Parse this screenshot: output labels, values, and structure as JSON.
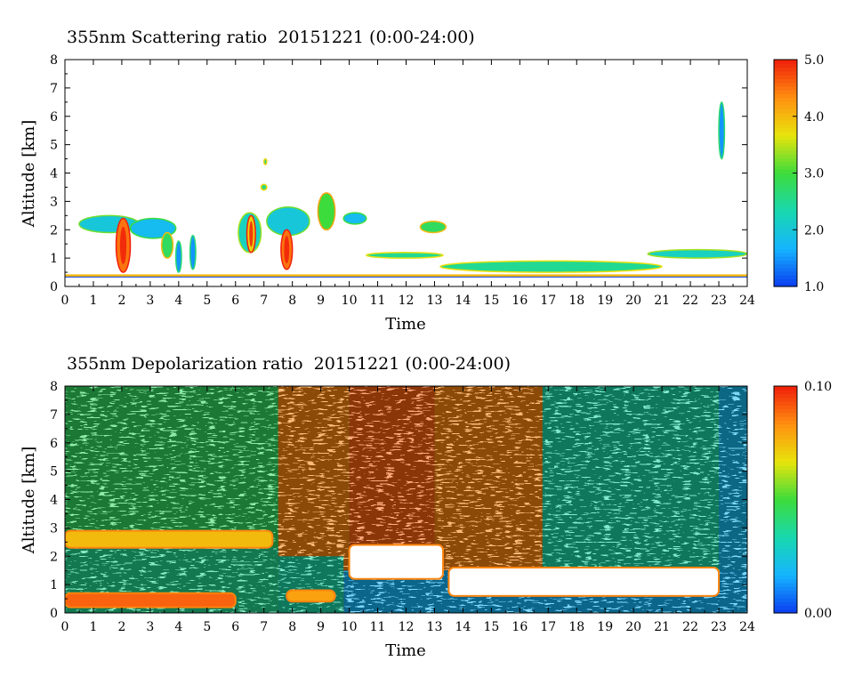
{
  "chart_data": [
    {
      "type": "heatmap",
      "title": "355nm Scattering ratio  20151221 (0:00-24:00)",
      "xlabel": "Time",
      "ylabel": "Altitude [km]",
      "xlim": [
        0,
        24
      ],
      "ylim": [
        0,
        8
      ],
      "x_ticks": [
        0,
        1,
        2,
        3,
        4,
        5,
        6,
        7,
        8,
        9,
        10,
        11,
        12,
        13,
        14,
        15,
        16,
        17,
        18,
        19,
        20,
        21,
        22,
        23,
        24
      ],
      "y_ticks": [
        0,
        1,
        2,
        3,
        4,
        5,
        6,
        7,
        8
      ],
      "colorbar": {
        "range": [
          1.0,
          5.0
        ],
        "tick_values": [
          1.0,
          2.0,
          3.0,
          4.0,
          5.0
        ],
        "tick_labels": [
          "1.0",
          "2.0",
          "3.0",
          "4.0",
          "5.0"
        ],
        "colors": [
          "#0a3cf0",
          "#16b4ff",
          "#18d8b0",
          "#3cdc3c",
          "#e8e40c",
          "#ff9010",
          "#f01e0a"
        ]
      },
      "surface_layer_km": 0.38,
      "features": [
        {
          "kind": "cloud",
          "t": [
            0.5,
            2.6
          ],
          "alt": [
            1.9,
            2.5
          ],
          "level": 2.0
        },
        {
          "kind": "cloud",
          "t": [
            1.8,
            2.3
          ],
          "alt": [
            0.5,
            2.4
          ],
          "level": 4.5
        },
        {
          "kind": "cloud",
          "t": [
            2.3,
            3.9
          ],
          "alt": [
            1.7,
            2.4
          ],
          "level": 1.8
        },
        {
          "kind": "cloud",
          "t": [
            3.4,
            3.8
          ],
          "alt": [
            1.0,
            1.9
          ],
          "level": 2.8
        },
        {
          "kind": "cloud",
          "t": [
            3.9,
            4.1
          ],
          "alt": [
            0.5,
            1.6
          ],
          "level": 1.5
        },
        {
          "kind": "cloud",
          "t": [
            4.4,
            4.6
          ],
          "alt": [
            0.6,
            1.8
          ],
          "level": 1.5
        },
        {
          "kind": "cloud",
          "t": [
            6.1,
            6.9
          ],
          "alt": [
            1.2,
            2.6
          ],
          "level": 2.2
        },
        {
          "kind": "cloud",
          "t": [
            6.4,
            6.7
          ],
          "alt": [
            1.2,
            2.5
          ],
          "level": 3.8
        },
        {
          "kind": "cloud",
          "t": [
            7.0,
            7.1
          ],
          "alt": [
            4.3,
            4.5
          ],
          "level": 2.6
        },
        {
          "kind": "cloud",
          "t": [
            6.9,
            7.1
          ],
          "alt": [
            3.4,
            3.6
          ],
          "level": 2.6
        },
        {
          "kind": "cloud",
          "t": [
            7.1,
            8.6
          ],
          "alt": [
            1.8,
            2.8
          ],
          "level": 2.0
        },
        {
          "kind": "cloud",
          "t": [
            7.6,
            8.0
          ],
          "alt": [
            0.6,
            2.0
          ],
          "level": 4.5
        },
        {
          "kind": "cloud",
          "t": [
            8.9,
            9.5
          ],
          "alt": [
            2.0,
            3.3
          ],
          "level": 3.0
        },
        {
          "kind": "cloud",
          "t": [
            9.8,
            10.6
          ],
          "alt": [
            2.2,
            2.6
          ],
          "level": 1.8
        },
        {
          "kind": "cloud",
          "t": [
            10.6,
            13.3
          ],
          "alt": [
            1.0,
            1.2
          ],
          "level": 2.5
        },
        {
          "kind": "cloud",
          "t": [
            12.5,
            13.4
          ],
          "alt": [
            1.9,
            2.3
          ],
          "level": 2.8
        },
        {
          "kind": "cloud",
          "t": [
            13.2,
            21.0
          ],
          "alt": [
            0.5,
            0.9
          ],
          "level": 2.5
        },
        {
          "kind": "cloud",
          "t": [
            20.5,
            24.0
          ],
          "alt": [
            1.0,
            1.3
          ],
          "level": 2.2
        },
        {
          "kind": "cloud",
          "t": [
            23.0,
            23.2
          ],
          "alt": [
            4.5,
            6.5
          ],
          "level": 1.5
        }
      ]
    },
    {
      "type": "heatmap",
      "title": "355nm Depolarization ratio  20151221 (0:00-24:00)",
      "xlabel": "Time",
      "ylabel": "Altitude [km]",
      "xlim": [
        0,
        24
      ],
      "ylim": [
        0,
        8
      ],
      "x_ticks": [
        0,
        1,
        2,
        3,
        4,
        5,
        6,
        7,
        8,
        9,
        10,
        11,
        12,
        13,
        14,
        15,
        16,
        17,
        18,
        19,
        20,
        21,
        22,
        23,
        24
      ],
      "y_ticks": [
        0,
        1,
        2,
        3,
        4,
        5,
        6,
        7,
        8
      ],
      "colorbar": {
        "range": [
          0.0,
          0.1
        ],
        "tick_values": [
          0.0,
          0.1
        ],
        "tick_labels": [
          "0.00",
          "0.10"
        ],
        "colors": [
          "#0a3cf0",
          "#16b4ff",
          "#18d8b0",
          "#3cdc3c",
          "#e8e40c",
          "#ff9010",
          "#f01e0a"
        ]
      },
      "upper_noise_level": [
        {
          "t": [
            0,
            7.5
          ],
          "level": 0.045
        },
        {
          "t": [
            7.5,
            10.0
          ],
          "level": 0.085
        },
        {
          "t": [
            10.0,
            13.0
          ],
          "level": 0.09
        },
        {
          "t": [
            13.0,
            16.8
          ],
          "level": 0.085
        },
        {
          "t": [
            16.8,
            23.0
          ],
          "level": 0.035
        },
        {
          "t": [
            23.0,
            24.0
          ],
          "level": 0.02
        }
      ],
      "boundary_layer": [
        {
          "t": [
            0,
            7.5
          ],
          "top_km": 2.3,
          "level": 0.038
        },
        {
          "t": [
            7.5,
            9.8
          ],
          "top_km": 2.0,
          "level": 0.035
        },
        {
          "t": [
            9.8,
            24.0
          ],
          "top_km": 1.5,
          "level": 0.018
        }
      ],
      "features": [
        {
          "kind": "layer",
          "t": [
            0.0,
            6.0
          ],
          "alt": [
            0.2,
            0.7
          ],
          "level": 0.09
        },
        {
          "kind": "layer",
          "t": [
            0.0,
            7.3
          ],
          "alt": [
            2.3,
            2.9
          ],
          "level": 0.075
        },
        {
          "kind": "layer",
          "t": [
            7.8,
            9.5
          ],
          "alt": [
            0.4,
            0.8
          ],
          "level": 0.08
        },
        {
          "kind": "layer",
          "t": [
            10.0,
            13.3
          ],
          "alt": [
            1.2,
            2.4
          ],
          "level": 0.1
        },
        {
          "kind": "layer",
          "t": [
            13.5,
            23.0
          ],
          "alt": [
            0.6,
            1.6
          ],
          "level": 0.1
        }
      ]
    }
  ]
}
